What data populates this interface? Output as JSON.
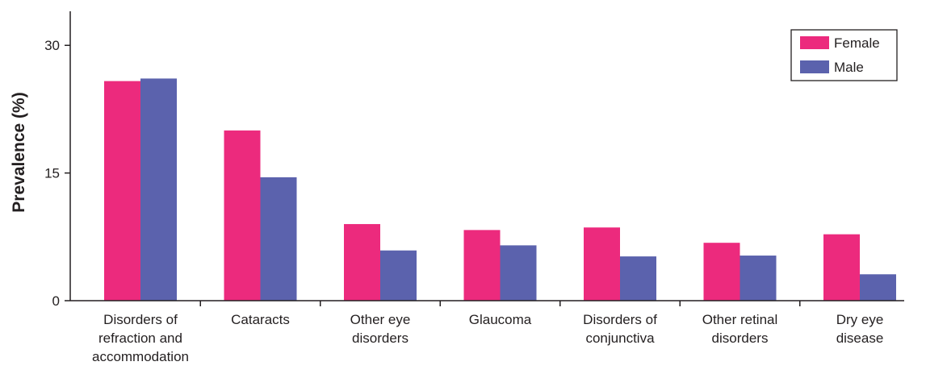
{
  "chart_data": {
    "type": "bar",
    "title": "",
    "xlabel": "",
    "ylabel": "Prevalence (%)",
    "ylim": [
      0,
      34
    ],
    "yticks": [
      0,
      15,
      30
    ],
    "categories": [
      [
        "Disorders of",
        "refraction and",
        "accommodation"
      ],
      [
        "Cataracts"
      ],
      [
        "Other eye",
        "disorders"
      ],
      [
        "Glaucoma"
      ],
      [
        "Disorders of",
        "conjunctiva"
      ],
      [
        "Other retinal",
        "disorders"
      ],
      [
        "Dry eye",
        "disease"
      ]
    ],
    "series": [
      {
        "name": "Female",
        "color": "#ec2a7d",
        "values": [
          25.8,
          20.0,
          9.0,
          8.3,
          8.6,
          6.8,
          7.8
        ]
      },
      {
        "name": "Male",
        "color": "#5b62ad",
        "values": [
          26.1,
          14.5,
          5.9,
          6.5,
          5.2,
          5.3,
          3.1
        ]
      }
    ],
    "grid": false,
    "legend_position": "top-right"
  }
}
